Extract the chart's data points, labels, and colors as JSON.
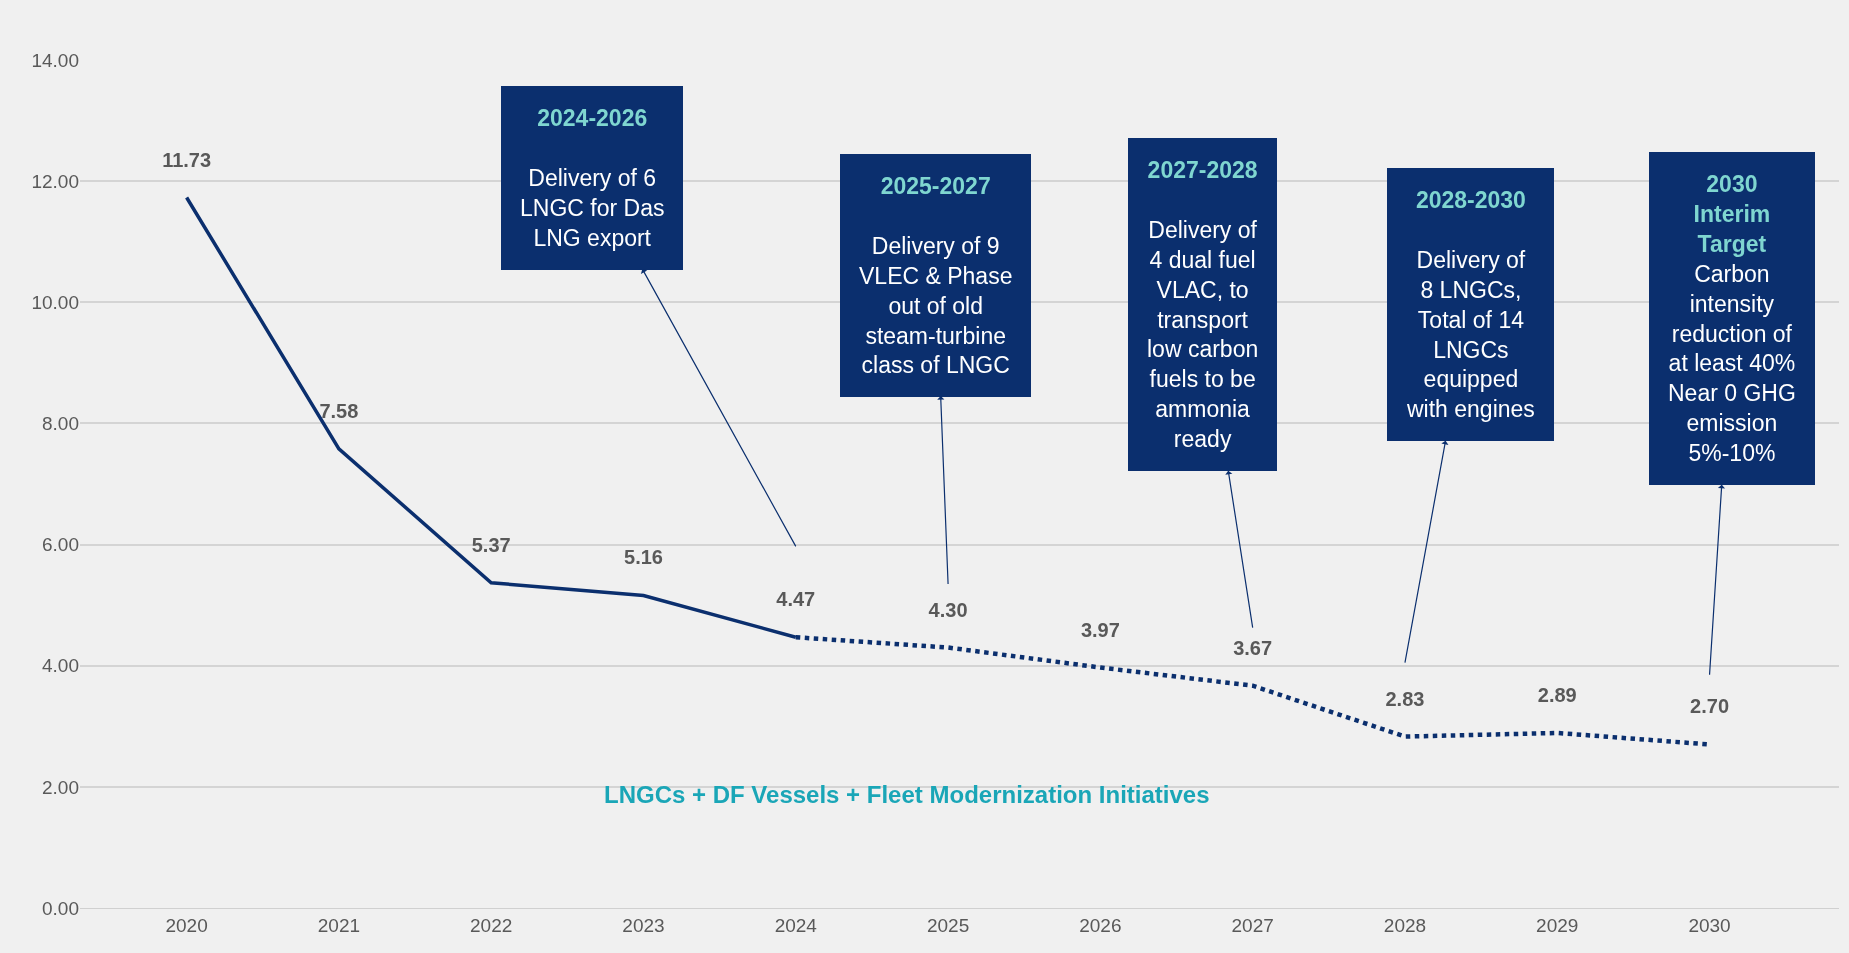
{
  "chart_data": {
    "type": "line",
    "categories": [
      "2020",
      "2021",
      "2022",
      "2023",
      "2024",
      "2025",
      "2026",
      "2027",
      "2028",
      "2029",
      "2030"
    ],
    "series": [
      {
        "color": "#0b2f6e",
        "line_style": "solid",
        "values": [
          11.73,
          7.58,
          5.37,
          5.16,
          4.47,
          null,
          null,
          null,
          null,
          null,
          null
        ],
        "value_labels": [
          "11.73",
          "7.58",
          "5.37",
          "5.16",
          "4.47",
          null,
          null,
          null,
          null,
          null,
          null
        ]
      },
      {
        "color": "#0b2f6e",
        "line_style": "dotted",
        "values": [
          null,
          null,
          null,
          null,
          4.47,
          4.3,
          3.97,
          3.67,
          2.83,
          2.89,
          2.7
        ],
        "value_labels": [
          null,
          null,
          null,
          null,
          null,
          "4.30",
          "3.97",
          "3.67",
          "2.83",
          "2.89",
          "2.70"
        ]
      }
    ],
    "ylim": [
      0,
      14
    ],
    "yticks": [
      {
        "value": 0,
        "label": "0.00"
      },
      {
        "value": 2,
        "label": "2.00"
      },
      {
        "value": 4,
        "label": "4.00"
      },
      {
        "value": 6,
        "label": "6.00"
      },
      {
        "value": 8,
        "label": "8.00"
      },
      {
        "value": 10,
        "label": "10.00"
      },
      {
        "value": 12,
        "label": "12.00"
      },
      {
        "value": 14,
        "label": "14.00"
      }
    ],
    "grid": "y",
    "legend": false,
    "marker": "none",
    "annotations": [
      "2024-2026\nDelivery of 6 LNGC for Das LNG export",
      "2025-2027\nDelivery of 9 VLEC & Phase out of old steam-turbine class of LNGC",
      "2027-2028\nDelivery of 4 dual fuel VLAC, to transport low carbon fuels to be ammonia ready",
      "2028-2030\nDelivery of 8 LNGCs, Total of 14 LNGCs equipped with engines",
      "2030 Interim Target\nCarbon intensity reduction of at least 40% Near 0 GHG emission 5%-10%",
      "LNGCs + DF Vessels + Fleet Modernization Initiatives"
    ]
  }
}
